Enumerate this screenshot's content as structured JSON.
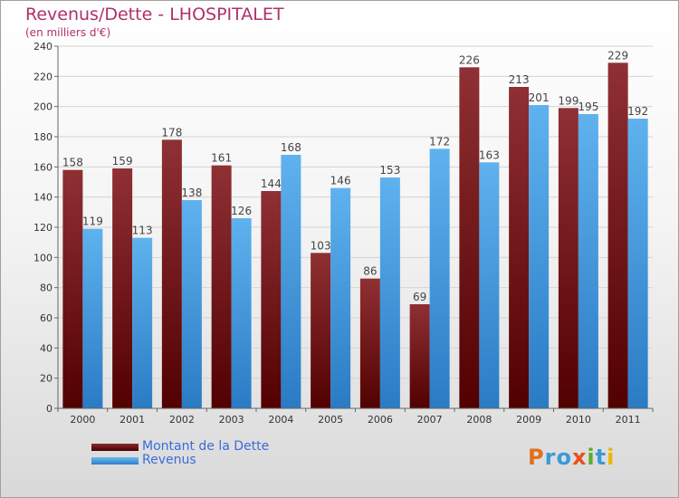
{
  "header": {
    "title": "Revenus/Dette - LHOSPITALET",
    "subtitle": "(en milliers d'€)"
  },
  "logo": {
    "text": "Proxiti",
    "letters": [
      {
        "char": "P",
        "color": "#e0701a"
      },
      {
        "char": "r",
        "color": "#3a9ad9"
      },
      {
        "char": "o",
        "color": "#3a9ad9"
      },
      {
        "char": "x",
        "color": "#e94e1b"
      },
      {
        "char": "i",
        "color": "#5aab2e"
      },
      {
        "char": "t",
        "color": "#3a9ad9"
      },
      {
        "char": "i",
        "color": "#f0b400"
      }
    ]
  },
  "chart_data": {
    "type": "bar",
    "title": "Revenus/Dette - LHOSPITALET",
    "subtitle": "(en milliers d'€)",
    "categories": [
      "2000",
      "2001",
      "2002",
      "2003",
      "2004",
      "2005",
      "2006",
      "2007",
      "2008",
      "2009",
      "2010",
      "2011"
    ],
    "series": [
      {
        "name": "Montant de la Dette",
        "color": "#8b2a2e",
        "color_dark": "#5a0000",
        "values": [
          158,
          159,
          178,
          161,
          144,
          103,
          86,
          69,
          226,
          213,
          199,
          229
        ]
      },
      {
        "name": "Revenus",
        "color": "#5aaeea",
        "color_dark": "#2e7fc8",
        "values": [
          119,
          113,
          138,
          126,
          168,
          146,
          153,
          172,
          163,
          201,
          195,
          192
        ]
      }
    ],
    "ylim": [
      0,
      240
    ],
    "yticks": [
      0,
      20,
      40,
      60,
      80,
      100,
      120,
      140,
      160,
      180,
      200,
      220,
      240
    ],
    "grid": true,
    "legend_position": "bottom-left"
  }
}
